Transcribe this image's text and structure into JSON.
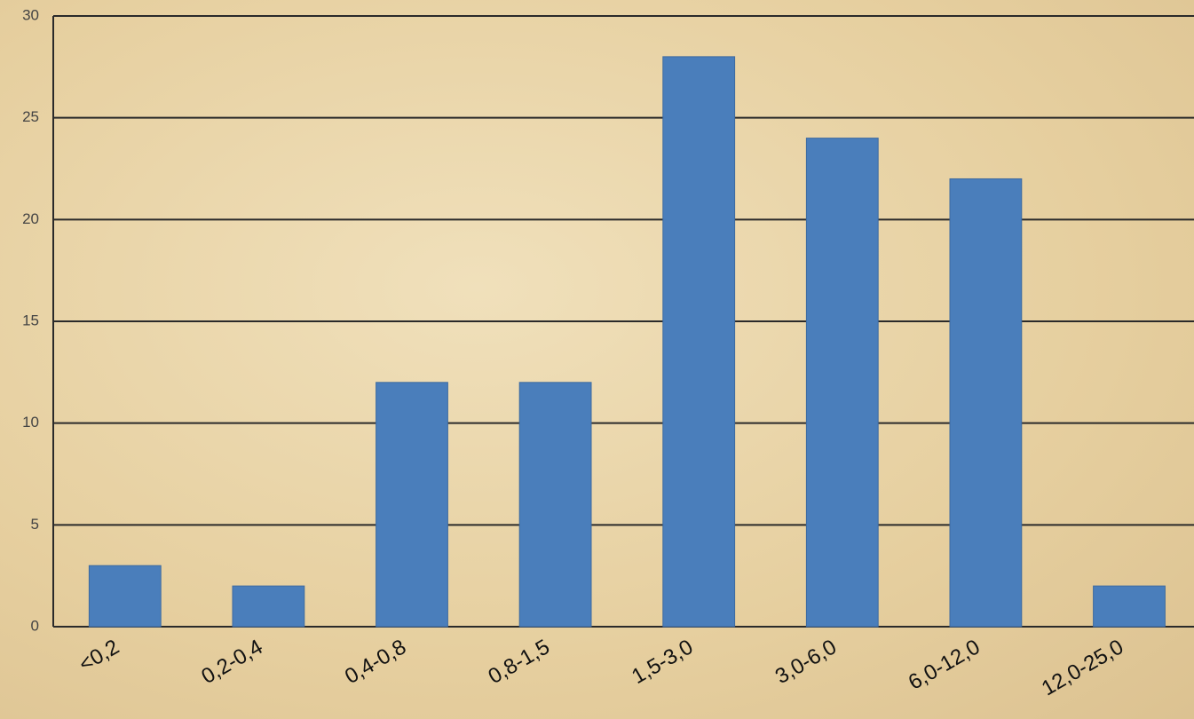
{
  "chart_data": {
    "type": "bar",
    "categories": [
      "<0,2",
      "0,2-0,4",
      "0,4-0,8",
      "0,8-1,5",
      "1,5-3,0",
      "3,0-6,0",
      "6,0-12,0",
      "12,0-25,0"
    ],
    "values": [
      3,
      2,
      12,
      12,
      28,
      24,
      22,
      2
    ],
    "color": "#4a7ebb",
    "ylim": [
      0,
      30
    ],
    "yticks": [
      0,
      5,
      10,
      15,
      20,
      25,
      30
    ],
    "grid": true
  }
}
